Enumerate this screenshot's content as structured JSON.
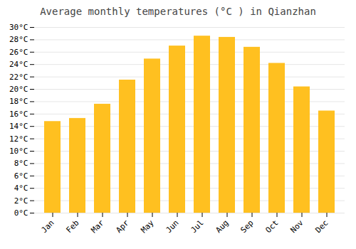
{
  "chart_data": {
    "type": "bar",
    "title": "Average monthly temperatures (°C ) in Qianzhan",
    "categories": [
      "Jan",
      "Feb",
      "Mar",
      "Apr",
      "May",
      "Jun",
      "Jul",
      "Aug",
      "Sep",
      "Oct",
      "Nov",
      "Dec"
    ],
    "values": [
      14.8,
      15.3,
      17.6,
      21.5,
      24.9,
      27.0,
      28.6,
      28.4,
      26.8,
      24.2,
      20.4,
      16.5
    ],
    "color": "#FFC020",
    "ylim": [
      0,
      30
    ],
    "yticks": [
      {
        "value": 0,
        "label": "0°C"
      },
      {
        "value": 2,
        "label": "2°C"
      },
      {
        "value": 4,
        "label": "4°C"
      },
      {
        "value": 6,
        "label": "6°C"
      },
      {
        "value": 8,
        "label": "8°C"
      },
      {
        "value": 10,
        "label": "10°C"
      },
      {
        "value": 12,
        "label": "12°C"
      },
      {
        "value": 14,
        "label": "14°C"
      },
      {
        "value": 16,
        "label": "16°C"
      },
      {
        "value": 18,
        "label": "18°C"
      },
      {
        "value": 20,
        "label": "20°C"
      },
      {
        "value": 22,
        "label": "22°C"
      },
      {
        "value": 24,
        "label": "24°C"
      },
      {
        "value": 26,
        "label": "26°C"
      },
      {
        "value": 28,
        "label": "28°C"
      },
      {
        "value": 30,
        "label": "30°C"
      }
    ],
    "grid": true
  }
}
